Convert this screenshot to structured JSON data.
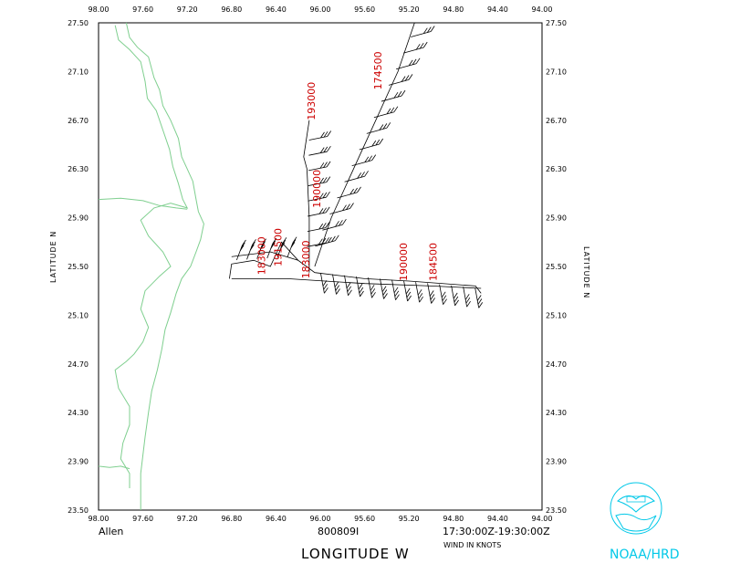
{
  "map": {
    "x_ticks": [
      "98.00",
      "97.60",
      "97.20",
      "96.80",
      "96.40",
      "96.00",
      "95.60",
      "95.20",
      "94.80",
      "94.40",
      "94.00"
    ],
    "y_ticks": [
      "27.50",
      "27.10",
      "26.70",
      "26.30",
      "25.90",
      "25.50",
      "25.10",
      "24.70",
      "24.30",
      "23.90",
      "23.50"
    ],
    "lon_range": [
      98.0,
      94.0
    ],
    "lat_range": [
      23.5,
      27.5
    ],
    "y_axis_label_left": "LATITUDE   N",
    "y_axis_label_right": "LATITUDE   N",
    "x_axis_label": "LONGITUDE   W",
    "storm_name": "Allen",
    "date_code": "800809I",
    "time_range": "17:30:00Z-19:30:00Z",
    "wind_units": "WIND IN KNOTS",
    "org_label": "NOAA/HRD",
    "coastline_color": "#7fcf8f",
    "track_color": "#000000",
    "label_color": "#cc0000",
    "time_labels": [
      "174500",
      "193000",
      "190000",
      "191500",
      "183000",
      "184500",
      "190000",
      "183000"
    ]
  }
}
